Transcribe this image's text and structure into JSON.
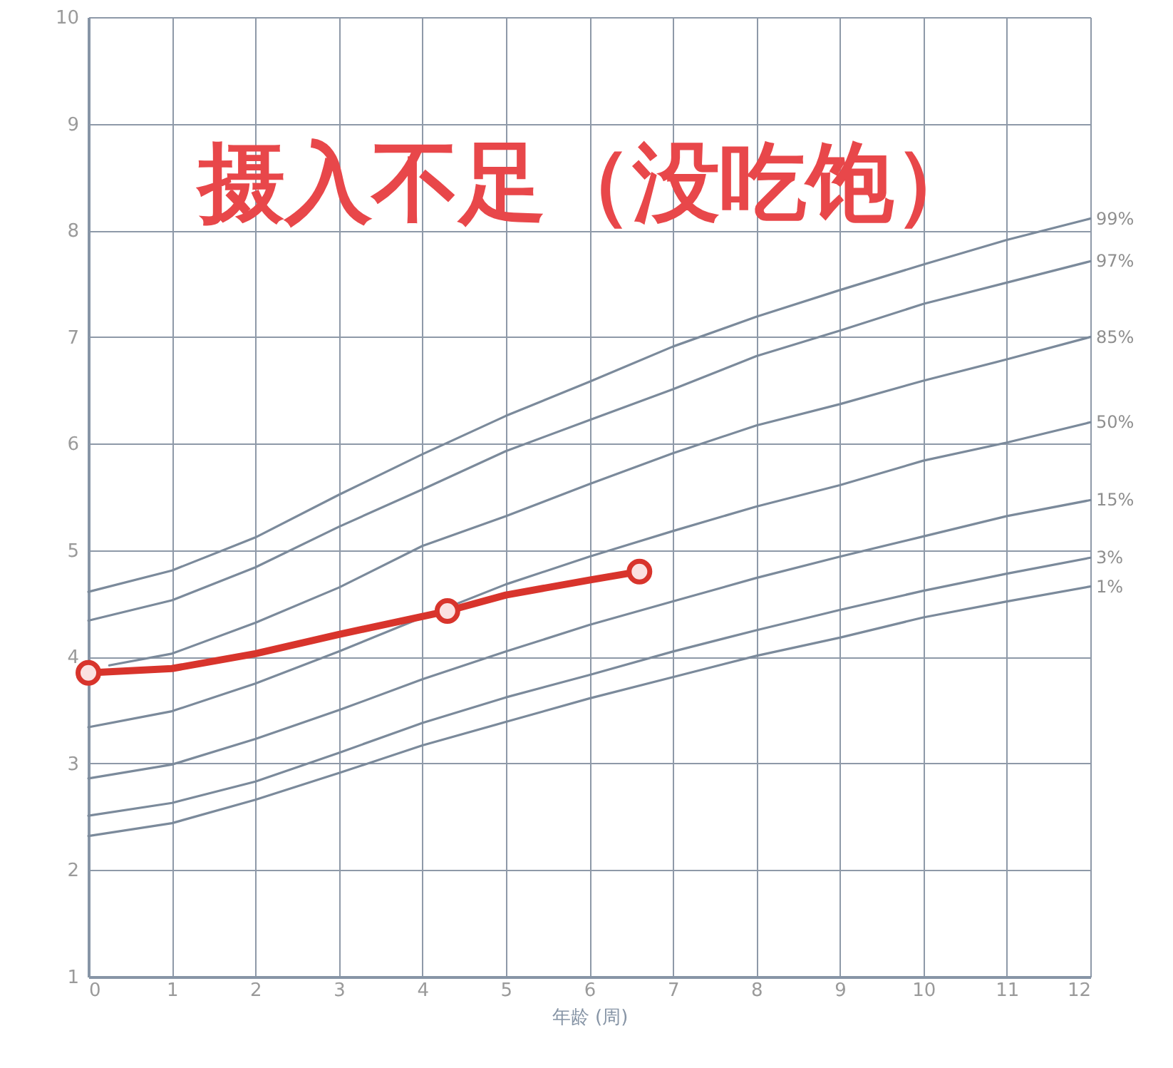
{
  "chart_data": {
    "type": "line",
    "title": "摄入不足（没吃饱）",
    "xlabel": "年龄 (周)",
    "x": [
      0,
      1,
      2,
      3,
      4,
      5,
      6,
      7,
      8,
      9,
      10,
      11,
      12
    ],
    "series": [
      {
        "name": "99%",
        "color": "#7b8a9b",
        "values": [
          4.61,
          4.81,
          5.12,
          5.52,
          5.9,
          6.26,
          6.58,
          6.91,
          7.19,
          7.44,
          7.68,
          7.91,
          8.11
        ]
      },
      {
        "name": "97%",
        "color": "#7b8a9b",
        "values": [
          4.34,
          4.53,
          4.84,
          5.22,
          5.57,
          5.93,
          6.22,
          6.51,
          6.82,
          7.06,
          7.31,
          7.51,
          7.71
        ]
      },
      {
        "name": "85%",
        "color": "#7b8a9b",
        "x": [
          0.25,
          1,
          2,
          3,
          4,
          5,
          6,
          7,
          8,
          9,
          10,
          11,
          12
        ],
        "values": [
          3.92,
          4.03,
          4.32,
          4.65,
          5.04,
          5.32,
          5.62,
          5.91,
          6.17,
          6.37,
          6.59,
          6.79,
          7.0
        ]
      },
      {
        "name": "50%",
        "color": "#7b8a9b",
        "values": [
          3.34,
          3.49,
          3.75,
          4.05,
          4.37,
          4.68,
          4.94,
          5.18,
          5.41,
          5.61,
          5.84,
          6.01,
          6.2
        ]
      },
      {
        "name": "15%",
        "color": "#7b8a9b",
        "values": [
          2.86,
          2.99,
          3.23,
          3.5,
          3.79,
          4.05,
          4.3,
          4.52,
          4.74,
          4.94,
          5.13,
          5.32,
          5.47
        ]
      },
      {
        "name": "3%",
        "color": "#7b8a9b",
        "values": [
          2.51,
          2.63,
          2.83,
          3.1,
          3.38,
          3.62,
          3.83,
          4.05,
          4.25,
          4.44,
          4.62,
          4.78,
          4.93
        ]
      },
      {
        "name": "1%",
        "color": "#7b8a9b",
        "values": [
          2.32,
          2.44,
          2.66,
          2.91,
          3.17,
          3.39,
          3.61,
          3.81,
          4.01,
          4.18,
          4.37,
          4.52,
          4.66
        ]
      },
      {
        "type": "line",
        "color": "#d8342c",
        "x": [
          0,
          1,
          2,
          3,
          4.3,
          5,
          6,
          6.6
        ],
        "values": [
          3.85,
          3.89,
          4.03,
          4.21,
          4.43,
          4.58,
          4.72,
          4.8
        ]
      },
      {
        "type": "scatter",
        "color": "#d8342c",
        "marker": "circle",
        "x": [
          0,
          4.3,
          6.6
        ],
        "values": [
          3.85,
          4.43,
          4.8
        ]
      }
    ],
    "xlim": [
      0,
      12
    ],
    "ylim": [
      1,
      10
    ],
    "xticks": [
      0,
      1,
      2,
      3,
      4,
      5,
      6,
      7,
      8,
      9,
      10,
      11,
      12
    ],
    "yticks": [
      1,
      2,
      3,
      4,
      5,
      6,
      7,
      8,
      9,
      10
    ],
    "grid": true,
    "marker": "none"
  }
}
